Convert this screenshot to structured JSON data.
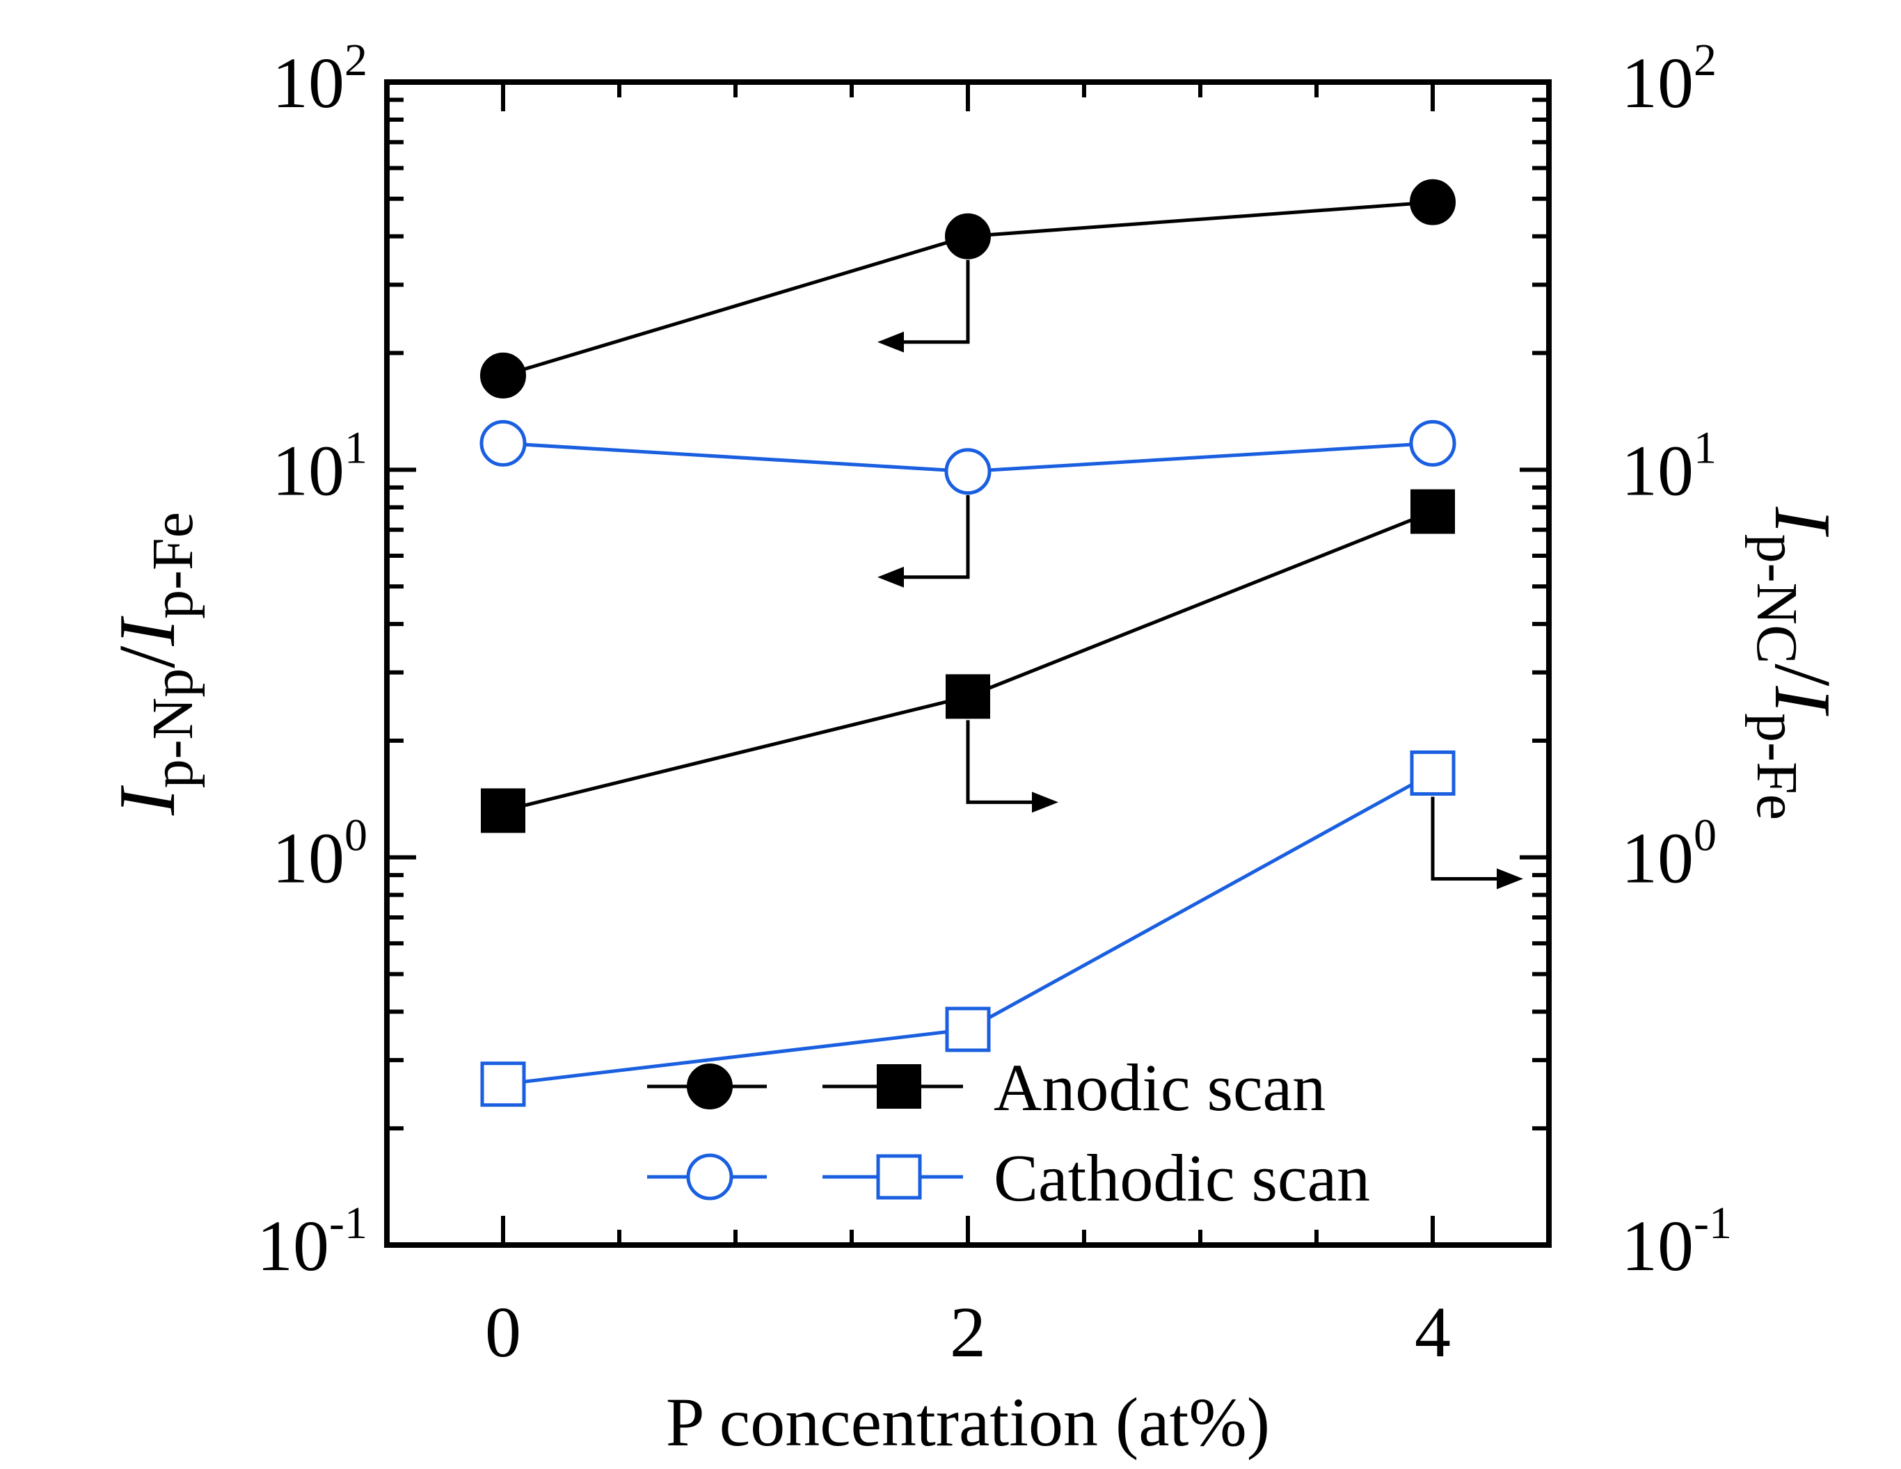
{
  "chart_data": {
    "type": "scatter",
    "xlabel": "P concentration (at%)",
    "ylabel_left": {
      "symbol": "I",
      "sub1": "p-Np",
      "slash": "/",
      "symbol2": "I",
      "sub2": "p-Fe"
    },
    "ylabel_right": {
      "symbol": "I",
      "sub1": "p-NC",
      "slash": "/",
      "symbol2": "I",
      "sub2": "p-Fe"
    },
    "x_ticks": [
      "0",
      "2",
      "4"
    ],
    "x_values": [
      0,
      2,
      4
    ],
    "xlim": [
      -0.5,
      4.5
    ],
    "yscale": "log",
    "ylim": [
      0.1,
      100
    ],
    "y_ticks": [
      {
        "value": 0.1,
        "base": "10",
        "exp": "-1"
      },
      {
        "value": 1,
        "base": "10",
        "exp": "0"
      },
      {
        "value": 10,
        "base": "10",
        "exp": "1"
      },
      {
        "value": 100,
        "base": "10",
        "exp": "2"
      }
    ],
    "series": [
      {
        "name": "Anodic scan (left axis)",
        "axis": "left",
        "marker": "filled-circle",
        "color": "#000000",
        "x": [
          0,
          2,
          4
        ],
        "values": [
          17.5,
          40,
          49
        ]
      },
      {
        "name": "Cathodic scan (left axis)",
        "axis": "left",
        "marker": "open-circle",
        "color": "#1a5fe0",
        "x": [
          0,
          2,
          4
        ],
        "values": [
          11.7,
          9.9,
          11.7
        ]
      },
      {
        "name": "Anodic scan (right axis)",
        "axis": "right",
        "marker": "filled-square",
        "color": "#000000",
        "x": [
          0,
          2,
          4
        ],
        "values": [
          1.32,
          2.6,
          7.8
        ]
      },
      {
        "name": "Cathodic scan (right axis)",
        "axis": "right",
        "marker": "open-square",
        "color": "#1a5fe0",
        "x": [
          0,
          2,
          4
        ],
        "values": [
          0.26,
          0.36,
          1.65
        ]
      }
    ],
    "legend": [
      {
        "label": "Anodic scan",
        "color": "#000000",
        "markers": [
          "filled-circle",
          "filled-square"
        ]
      },
      {
        "label": "Cathodic scan",
        "color": "#1a5fe0",
        "markers": [
          "open-circle",
          "open-square"
        ]
      }
    ],
    "legend_position": "bottom-right",
    "axis_arrows": [
      {
        "series": "Anodic scan (left axis)",
        "x": 2,
        "direction": "left"
      },
      {
        "series": "Cathodic scan (left axis)",
        "x": 2,
        "direction": "left"
      },
      {
        "series": "Anodic scan (right axis)",
        "x": 2,
        "direction": "right"
      },
      {
        "series": "Cathodic scan (right axis)",
        "x": 4,
        "direction": "right"
      }
    ]
  }
}
